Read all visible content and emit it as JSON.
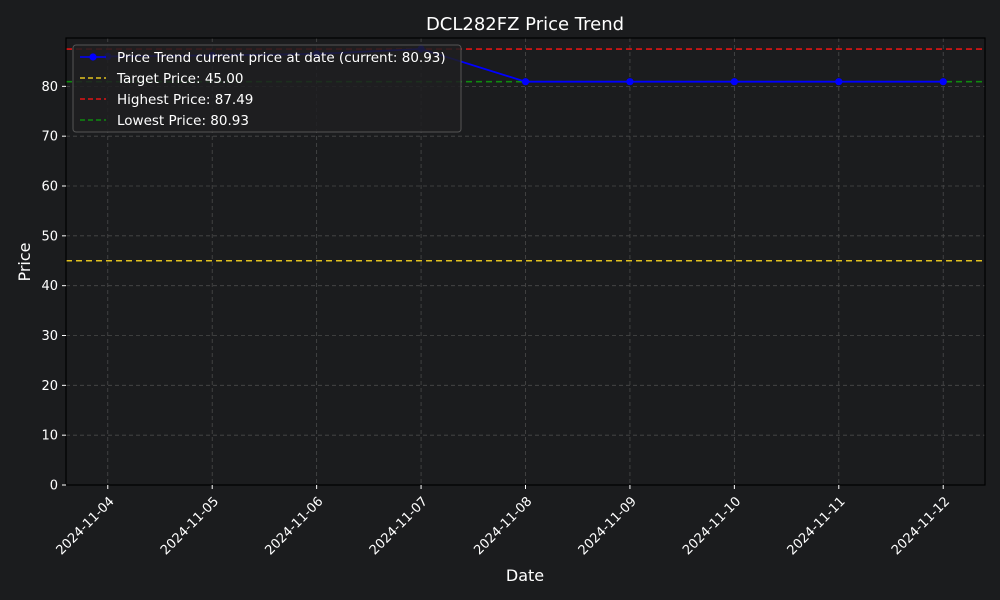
{
  "chart_data": {
    "type": "line",
    "title": "DCL282FZ Price Trend",
    "xlabel": "Date",
    "ylabel": "Price",
    "x": [
      "2024-11-04",
      "2024-11-05",
      "2024-11-06",
      "2024-11-07",
      "2024-11-08",
      "2024-11-09",
      "2024-11-10",
      "2024-11-11",
      "2024-11-12"
    ],
    "xlim": [
      "2024-11-03.6",
      "2024-11-12.4"
    ],
    "ylim": [
      0,
      89.7
    ],
    "yticks": [
      0,
      10,
      20,
      30,
      40,
      50,
      60,
      70,
      80
    ],
    "grid": true,
    "legend_position": "top-left",
    "series": [
      {
        "name": "Price Trend current price at date (current: 80.93)",
        "color": "#0000ff",
        "marker": "circle",
        "points": [
          {
            "x": "2024-11-04",
            "y": 86.0
          },
          {
            "x": "2024-11-05",
            "y": 86.2
          },
          {
            "x": "2024-11-06",
            "y": 86.5
          },
          {
            "x": "2024-11-07",
            "y": 87.49
          },
          {
            "x": "2024-11-08",
            "y": 80.93
          },
          {
            "x": "2024-11-09",
            "y": 80.93
          },
          {
            "x": "2024-11-10",
            "y": 80.93
          },
          {
            "x": "2024-11-11",
            "y": 80.93
          },
          {
            "x": "2024-11-12",
            "y": 80.93
          }
        ]
      }
    ],
    "reference_lines": [
      {
        "label": "Target Price: 45.00",
        "value": 45.0,
        "color": "#e2c21f"
      },
      {
        "label": "Highest Price: 87.49",
        "value": 87.49,
        "color": "#e01414"
      },
      {
        "label": "Lowest Price: 80.93",
        "value": 80.93,
        "color": "#0f8a0f"
      }
    ]
  },
  "colors": {
    "background": "#1b1c1e",
    "plot_background": "#1b1c1e",
    "grid": "#4a4a4a",
    "text": "#ffffff",
    "legend_background": "#1e1f21",
    "legend_border": "#555555"
  }
}
